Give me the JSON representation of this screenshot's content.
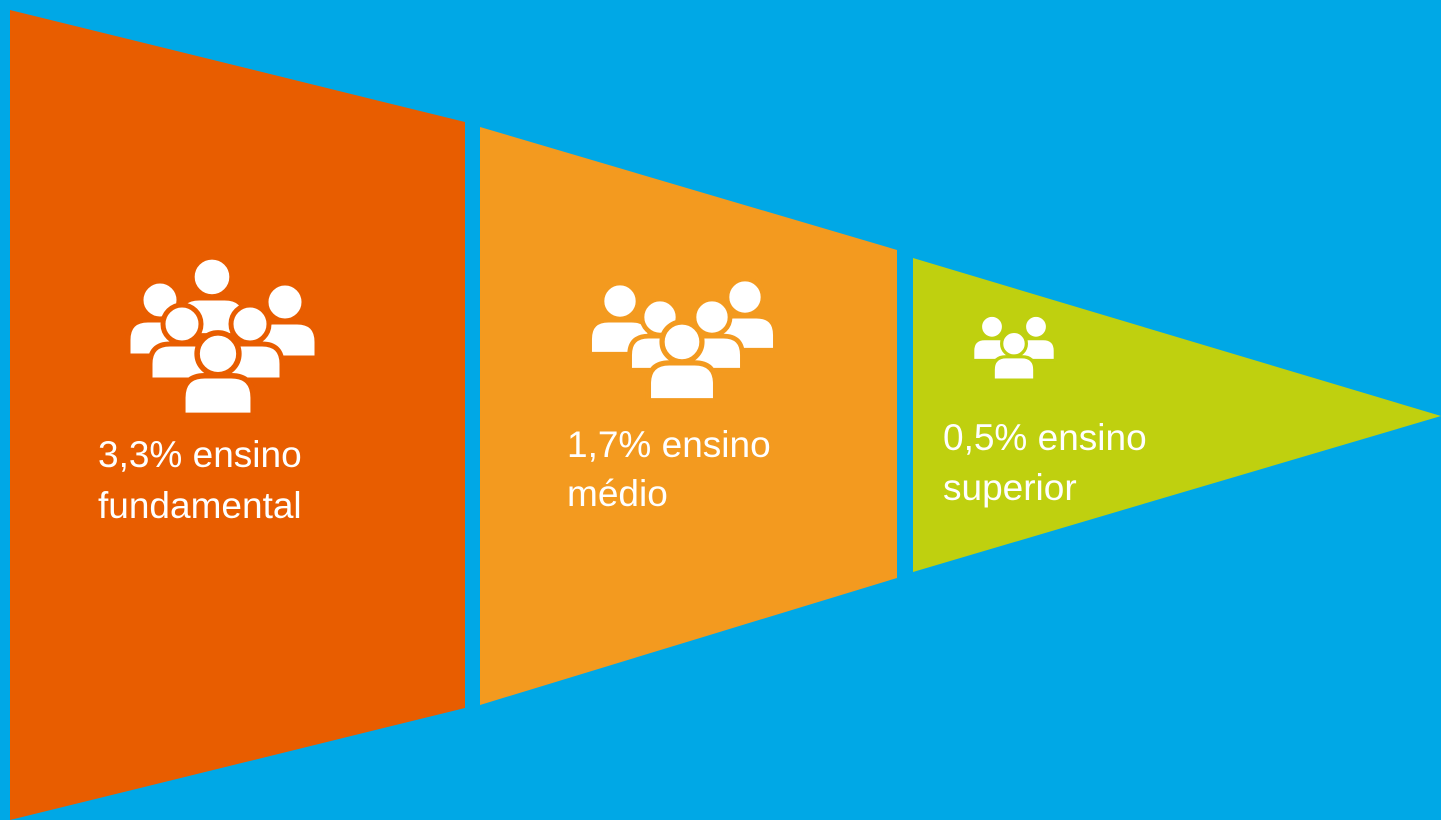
{
  "segments": [
    {
      "lines": [
        "3,3% ensino",
        "fundamental"
      ]
    },
    {
      "lines": [
        "1,7% ensino",
        "médio"
      ]
    },
    {
      "lines": [
        "0,5% ensino",
        "superior"
      ]
    }
  ]
}
